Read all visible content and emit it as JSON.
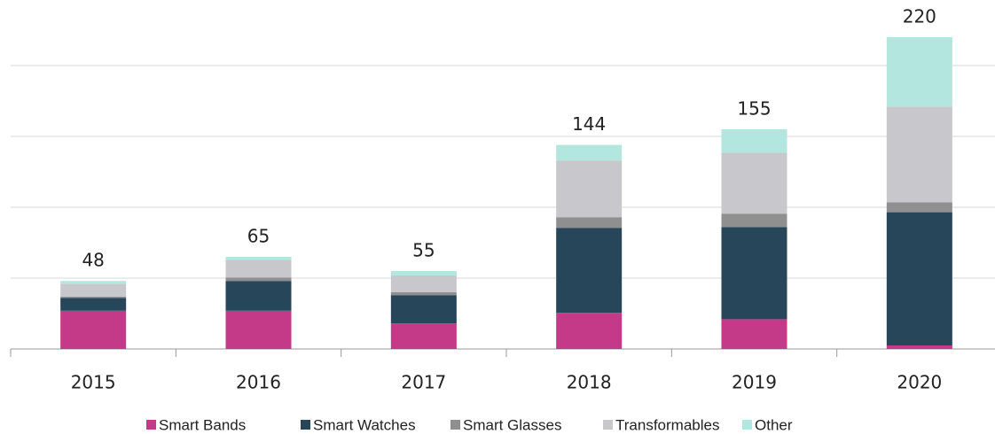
{
  "chart_data": {
    "type": "stacked_bar",
    "categories": [
      "2015",
      "2016",
      "2017",
      "2018",
      "2019",
      "2020"
    ],
    "series": [
      {
        "name": "Smart Bands",
        "color": "#c43a88",
        "values": [
          27,
          27,
          18,
          25.5,
          21,
          2.5
        ]
      },
      {
        "name": "Smart Watches",
        "color": "#27465a",
        "values": [
          9,
          21,
          20,
          60,
          65,
          94
        ]
      },
      {
        "name": "Smart Glasses",
        "color": "#8f8f8f",
        "values": [
          1,
          2.5,
          2,
          7.5,
          9.5,
          7
        ]
      },
      {
        "name": "Transformables",
        "color": "#c8c8cc",
        "values": [
          9,
          12.5,
          12,
          40,
          43,
          67.5
        ]
      },
      {
        "name": "Other",
        "color": "#b2e6df",
        "values": [
          2,
          2,
          3,
          11,
          16.5,
          49
        ]
      }
    ],
    "totals": [
      48,
      65,
      55,
      144,
      155,
      220
    ],
    "ylim": [
      0,
      240
    ],
    "yticks": [
      0,
      50,
      100,
      150,
      200
    ],
    "grid": true,
    "legend": "bottom"
  }
}
